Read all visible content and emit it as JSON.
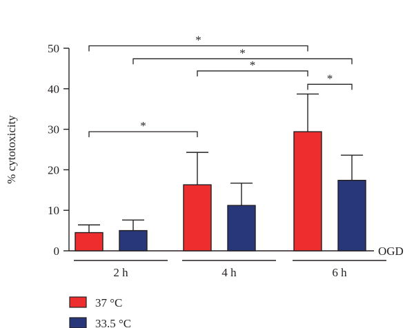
{
  "chart_data": {
    "type": "bar",
    "ylabel": "% cytotoxicity",
    "x_extra_label": "OGD",
    "ylim": [
      0,
      50
    ],
    "yticks": [
      0,
      10,
      20,
      30,
      40,
      50
    ],
    "categories": [
      "2 h",
      "4 h",
      "6 h"
    ],
    "series": [
      {
        "name": "37 °C",
        "color": "#ee2d2e",
        "values": [
          4.5,
          16.3,
          29.4
        ],
        "errors": [
          1.9,
          8.0,
          9.3
        ]
      },
      {
        "name": "33.5 °C",
        "color": "#283779",
        "values": [
          5.0,
          11.2,
          17.4
        ],
        "errors": [
          2.6,
          5.5,
          6.2
        ]
      }
    ],
    "significance": [
      {
        "from": [
          0,
          0
        ],
        "to": [
          2,
          0
        ],
        "level": 50.6,
        "label": "*"
      },
      {
        "from": [
          0,
          1
        ],
        "to": [
          2,
          1
        ],
        "level": 47.4,
        "label": "*"
      },
      {
        "from": [
          1,
          0
        ],
        "to": [
          2,
          0
        ],
        "level": 44.4,
        "label": "*"
      },
      {
        "from": [
          2,
          0
        ],
        "to": [
          2,
          1
        ],
        "level": 41.1,
        "label": "*"
      },
      {
        "from": [
          0,
          0
        ],
        "to": [
          1,
          0
        ],
        "level": 29.4,
        "label": "*"
      }
    ],
    "legend_position": "bottom-left"
  }
}
